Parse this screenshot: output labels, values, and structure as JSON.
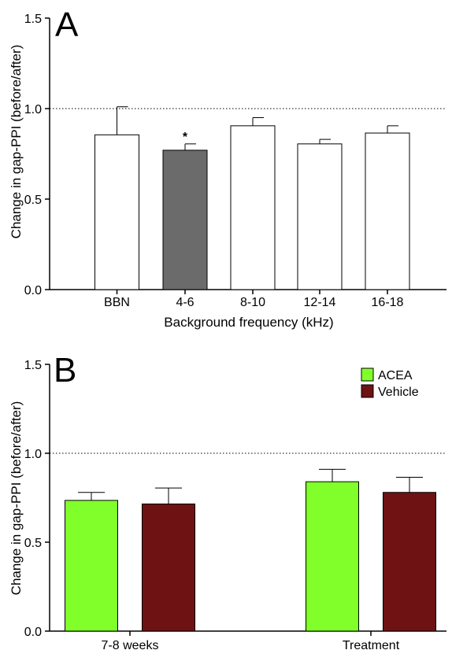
{
  "chart_data": [
    {
      "type": "bar",
      "panel_label": "A",
      "categories": [
        "BBN",
        "4-6",
        "8-10",
        "12-14",
        "16-18"
      ],
      "values": [
        0.855,
        0.77,
        0.905,
        0.805,
        0.865
      ],
      "errors": [
        0.155,
        0.035,
        0.045,
        0.025,
        0.04
      ],
      "bar_colors": [
        "#ffffff",
        "#6b6b6b",
        "#ffffff",
        "#ffffff",
        "#ffffff"
      ],
      "annotations": [
        "",
        "*",
        "",
        "",
        ""
      ],
      "xlabel": "Background frequency (kHz)",
      "ylabel": "Change in gap-PPI (before/after)",
      "ylim": [
        0,
        1.5
      ],
      "yticks": [
        "0.0",
        "0.5",
        "1.0",
        "1.5"
      ],
      "reference_line": 1.0,
      "grid": false
    },
    {
      "type": "bar",
      "panel_label": "B",
      "categories": [
        "7-8 weeks",
        "Treatment"
      ],
      "series": [
        {
          "name": "ACEA",
          "color": "#80ff2a",
          "values": [
            0.735,
            0.84
          ],
          "errors": [
            0.045,
            0.07
          ]
        },
        {
          "name": "Vehicle",
          "color": "#6e1214",
          "values": [
            0.715,
            0.78
          ],
          "errors": [
            0.09,
            0.085
          ]
        }
      ],
      "ylabel": "Change in gap-PPI (before/after)",
      "ylim": [
        0,
        1.5
      ],
      "yticks": [
        "0.0",
        "0.5",
        "1.0",
        "1.5"
      ],
      "reference_line": 1.0,
      "legend_position": "top-right",
      "grid": false
    }
  ]
}
